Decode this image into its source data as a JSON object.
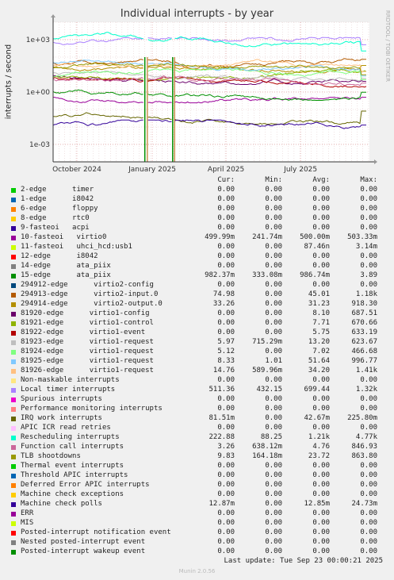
{
  "title": "Individual interrupts - by year",
  "ylabel": "interrupts / second",
  "side_text": "RRDTOOL / TOBI OETIKER",
  "footer": "Last update: Tue Sep 23 00:00:21 2025",
  "munin": "Munin 2.0.56",
  "legend_headers": {
    "cur": "Cur:",
    "min": "Min:",
    "avg": "Avg:",
    "max": "Max:"
  },
  "chart_data": {
    "type": "line",
    "title": "Individual interrupts - by year",
    "ylabel": "interrupts / second",
    "yscale": "log",
    "ylim": [
      0.0001,
      10000
    ],
    "yticks": [
      {
        "label": "1e+03",
        "value": 1000
      },
      {
        "label": "1e+00",
        "value": 1
      },
      {
        "label": "1e-03",
        "value": 0.001
      }
    ],
    "xlim": [
      "2024-09-02",
      "2025-09-23"
    ],
    "xticks": [
      {
        "label": "October 2024",
        "date": "2024-10-01"
      },
      {
        "label": "January 2025",
        "date": "2025-01-01"
      },
      {
        "label": "April 2025",
        "date": "2025-04-01"
      },
      {
        "label": "July 2025",
        "date": "2025-07-01"
      }
    ],
    "grid": true,
    "series": [
      {
        "name": "2-edge      timer",
        "color": "#00cc00",
        "cur": "0.00",
        "min": "0.00",
        "avg": "0.00",
        "max": "0.00"
      },
      {
        "name": "1-edge      i8042",
        "color": "#0066b3",
        "cur": "0.00",
        "min": "0.00",
        "avg": "0.00",
        "max": "0.00"
      },
      {
        "name": "6-edge      floppy",
        "color": "#ff8000",
        "cur": "0.00",
        "min": "0.00",
        "avg": "0.00",
        "max": "0.00"
      },
      {
        "name": "8-edge      rtc0",
        "color": "#ffcc00",
        "cur": "0.00",
        "min": "0.00",
        "avg": "0.00",
        "max": "0.00"
      },
      {
        "name": "9-fasteoi   acpi",
        "color": "#330099",
        "cur": "0.00",
        "min": "0.00",
        "avg": "0.00",
        "max": "0.00"
      },
      {
        "name": "10-fasteoi   virtio0",
        "color": "#990099",
        "cur": "499.99m",
        "min": "241.74m",
        "avg": "500.00m",
        "max": "503.33m"
      },
      {
        "name": "11-fasteoi   uhci_hcd:usb1",
        "color": "#ccff00",
        "cur": "0.00",
        "min": "0.00",
        "avg": "87.46n",
        "max": "3.14m"
      },
      {
        "name": "12-edge      i8042",
        "color": "#ff0000",
        "cur": "0.00",
        "min": "0.00",
        "avg": "0.00",
        "max": "0.00"
      },
      {
        "name": "14-edge      ata_piix",
        "color": "#808080",
        "cur": "0.00",
        "min": "0.00",
        "avg": "0.00",
        "max": "0.00"
      },
      {
        "name": "15-edge      ata_piix",
        "color": "#008f00",
        "cur": "982.37m",
        "min": "333.08m",
        "avg": "986.74m",
        "max": "3.89"
      },
      {
        "name": "294912-edge      virtio2-config",
        "color": "#00487d",
        "cur": "0.00",
        "min": "0.00",
        "avg": "0.00",
        "max": "0.00"
      },
      {
        "name": "294913-edge      virtio2-input.0",
        "color": "#b35a00",
        "cur": "74.98",
        "min": "0.00",
        "avg": "45.01",
        "max": "1.18k"
      },
      {
        "name": "294914-edge      virtio2-output.0",
        "color": "#b38f00",
        "cur": "33.26",
        "min": "0.00",
        "avg": "31.23",
        "max": "918.30"
      },
      {
        "name": "81920-edge      virtio1-config",
        "color": "#6b006b",
        "cur": "0.00",
        "min": "0.00",
        "avg": "8.10",
        "max": "687.51"
      },
      {
        "name": "81921-edge      virtio1-control",
        "color": "#8fb300",
        "cur": "0.00",
        "min": "0.00",
        "avg": "7.71",
        "max": "670.66"
      },
      {
        "name": "81922-edge      virtio1-event",
        "color": "#b30000",
        "cur": "0.00",
        "min": "0.00",
        "avg": "5.75",
        "max": "633.19"
      },
      {
        "name": "81923-edge      virtio1-request",
        "color": "#bebebe",
        "cur": "5.97",
        "min": "715.29m",
        "avg": "13.20",
        "max": "623.67"
      },
      {
        "name": "81924-edge      virtio1-request",
        "color": "#80ff80",
        "cur": "5.12",
        "min": "0.00",
        "avg": "7.02",
        "max": "466.68"
      },
      {
        "name": "81925-edge      virtio1-request",
        "color": "#80c9ff",
        "cur": "8.33",
        "min": "1.01",
        "avg": "51.64",
        "max": "996.77"
      },
      {
        "name": "81926-edge      virtio1-request",
        "color": "#ffc080",
        "cur": "14.76",
        "min": "589.96m",
        "avg": "34.20",
        "max": "1.41k"
      },
      {
        "name": "Non-maskable interrupts",
        "color": "#ffe680",
        "cur": "0.00",
        "min": "0.00",
        "avg": "0.00",
        "max": "0.00"
      },
      {
        "name": "Local timer interrupts",
        "color": "#aa80ff",
        "cur": "511.36",
        "min": "432.15",
        "avg": "699.44",
        "max": "1.32k"
      },
      {
        "name": "Spurious interrupts",
        "color": "#ee00cc",
        "cur": "0.00",
        "min": "0.00",
        "avg": "0.00",
        "max": "0.00"
      },
      {
        "name": "Performance monitoring interrupts",
        "color": "#ff8080",
        "cur": "0.00",
        "min": "0.00",
        "avg": "0.00",
        "max": "0.00"
      },
      {
        "name": "IRQ work interrupts",
        "color": "#666600",
        "cur": "81.51m",
        "min": "0.00",
        "avg": "42.67m",
        "max": "225.80m"
      },
      {
        "name": "APIC ICR read retries",
        "color": "#ffbfff",
        "cur": "0.00",
        "min": "0.00",
        "avg": "0.00",
        "max": "0.00"
      },
      {
        "name": "Rescheduling interrupts",
        "color": "#00ffcc",
        "cur": "222.88",
        "min": "88.25",
        "avg": "1.21k",
        "max": "4.77k"
      },
      {
        "name": "Function call interrupts",
        "color": "#cc6699",
        "cur": "3.26",
        "min": "638.12m",
        "avg": "4.76",
        "max": "846.93"
      },
      {
        "name": "TLB shootdowns",
        "color": "#999900",
        "cur": "9.83",
        "min": "164.18m",
        "avg": "23.72",
        "max": "863.80"
      },
      {
        "name": "Thermal event interrupts",
        "color": "#00cc00",
        "cur": "0.00",
        "min": "0.00",
        "avg": "0.00",
        "max": "0.00"
      },
      {
        "name": "Threshold APIC interrupts",
        "color": "#0066b3",
        "cur": "0.00",
        "min": "0.00",
        "avg": "0.00",
        "max": "0.00"
      },
      {
        "name": "Deferred Error APIC interrupts",
        "color": "#ff8000",
        "cur": "0.00",
        "min": "0.00",
        "avg": "0.00",
        "max": "0.00"
      },
      {
        "name": "Machine check exceptions",
        "color": "#ffcc00",
        "cur": "0.00",
        "min": "0.00",
        "avg": "0.00",
        "max": "0.00"
      },
      {
        "name": "Machine check polls",
        "color": "#330099",
        "cur": "12.87m",
        "min": "0.00",
        "avg": "12.85m",
        "max": "24.73m"
      },
      {
        "name": "ERR",
        "color": "#990099",
        "cur": "0.00",
        "min": "0.00",
        "avg": "0.00",
        "max": "0.00"
      },
      {
        "name": "MIS",
        "color": "#ccff00",
        "cur": "0.00",
        "min": "0.00",
        "avg": "0.00",
        "max": "0.00"
      },
      {
        "name": "Posted-interrupt notification event",
        "color": "#ff0000",
        "cur": "0.00",
        "min": "0.00",
        "avg": "0.00",
        "max": "0.00"
      },
      {
        "name": "Nested posted-interrupt event",
        "color": "#808080",
        "cur": "0.00",
        "min": "0.00",
        "avg": "0.00",
        "max": "0.00"
      },
      {
        "name": "Posted-interrupt wakeup event",
        "color": "#008f00",
        "cur": "0.00",
        "min": "0.00",
        "avg": "0.00",
        "max": "0.00"
      }
    ]
  }
}
